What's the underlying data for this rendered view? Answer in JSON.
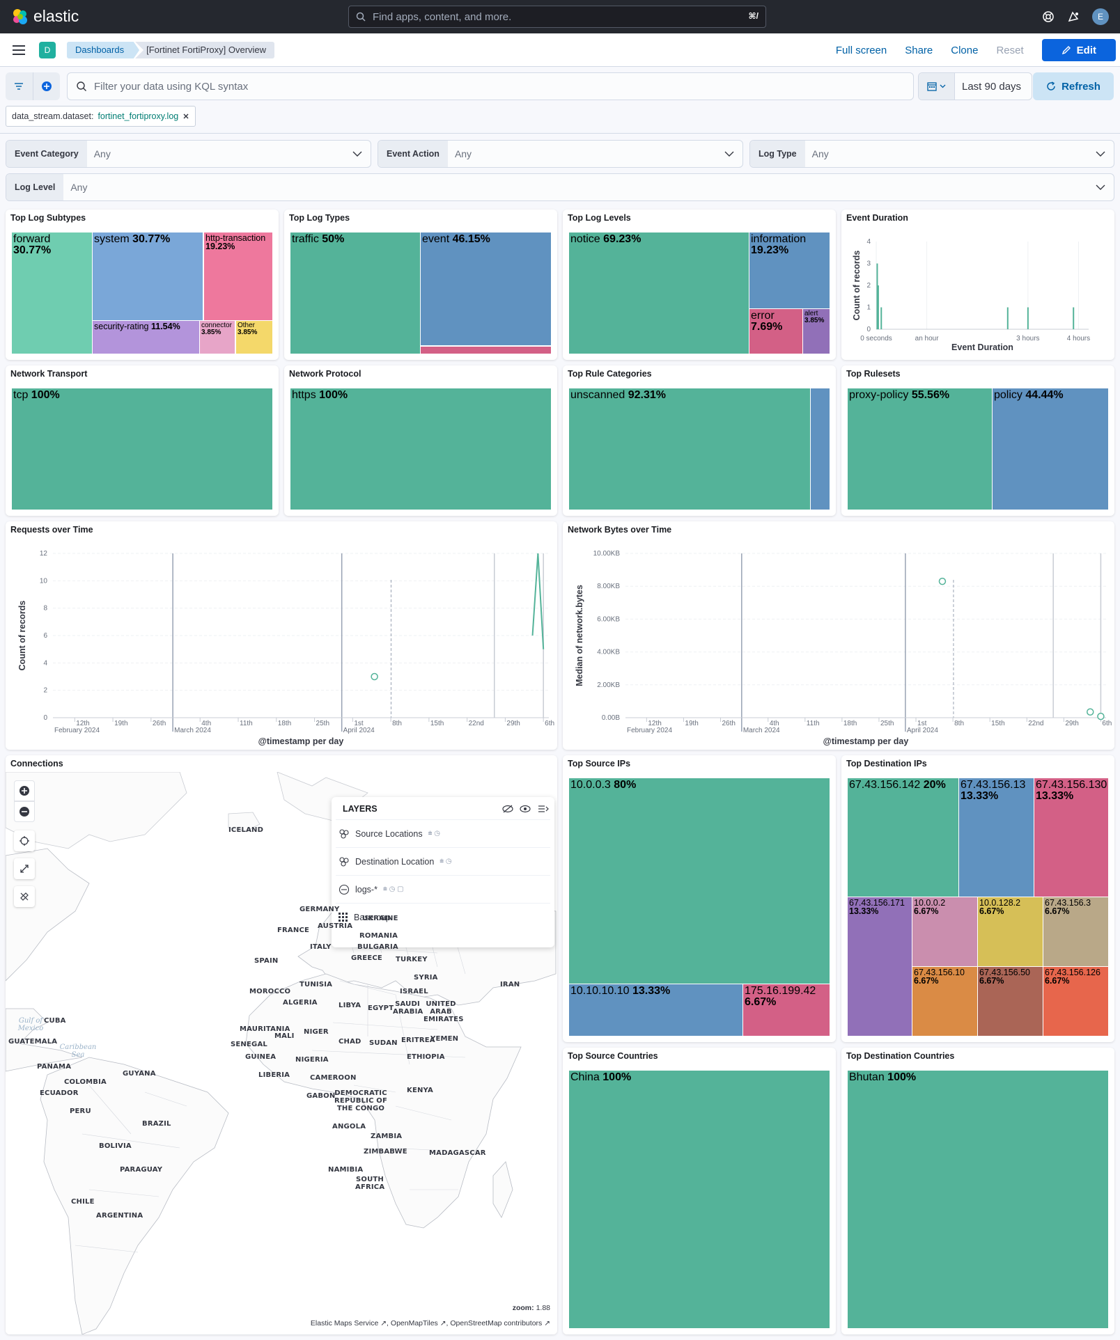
{
  "header": {
    "logo_text": "elastic",
    "search_placeholder": "Find apps, content, and more.",
    "search_shortcut": "⌘/",
    "avatar_initial": "E"
  },
  "nav": {
    "space_badge": "D",
    "breadcrumbs": [
      "Dashboards",
      "[Fortinet FortiProxy] Overview"
    ],
    "actions": {
      "fullscreen": "Full screen",
      "share": "Share",
      "clone": "Clone",
      "reset": "Reset",
      "edit": "Edit"
    }
  },
  "query": {
    "placeholder": "Filter your data using KQL syntax",
    "date_range": "Last 90 days",
    "refresh": "Refresh",
    "filter_pill": {
      "field": "data_stream.dataset:",
      "value": "fortinet_fortiproxy.log"
    }
  },
  "controls": [
    {
      "label": "Event Category",
      "value": "Any"
    },
    {
      "label": "Event Action",
      "value": "Any"
    },
    {
      "label": "Log Type",
      "value": "Any"
    },
    {
      "label": "Log Level",
      "value": "Any"
    }
  ],
  "panels": {
    "top_log_subtypes": {
      "title": "Top Log Subtypes",
      "cells": [
        {
          "label": "forward",
          "pct": "30.77%"
        },
        {
          "label": "system",
          "pct": "30.77%"
        },
        {
          "label": "http-transaction",
          "pct": "19.23%"
        },
        {
          "label": "security-rating",
          "pct": "11.54%"
        },
        {
          "label": "connector",
          "pct": "3.85%"
        },
        {
          "label": "Other",
          "pct": "3.85%"
        }
      ]
    },
    "top_log_types": {
      "title": "Top Log Types",
      "cells": [
        {
          "label": "traffic",
          "pct": "50%"
        },
        {
          "label": "event",
          "pct": "46.15%"
        }
      ]
    },
    "top_log_levels": {
      "title": "Top Log Levels",
      "cells": [
        {
          "label": "notice",
          "pct": "69.23%"
        },
        {
          "label": "information",
          "pct": "19.23%"
        },
        {
          "label": "error",
          "pct": "7.69%"
        },
        {
          "label": "alert",
          "pct": "3.85%"
        }
      ]
    },
    "event_duration": {
      "title": "Event Duration"
    },
    "network_transport": {
      "title": "Network Transport",
      "cells": [
        {
          "label": "tcp",
          "pct": "100%"
        }
      ]
    },
    "network_protocol": {
      "title": "Network Protocol",
      "cells": [
        {
          "label": "https",
          "pct": "100%"
        }
      ]
    },
    "top_rule_categories": {
      "title": "Top Rule Categories",
      "cells": [
        {
          "label": "unscanned",
          "pct": "92.31%"
        }
      ]
    },
    "top_rulesets": {
      "title": "Top Rulesets",
      "cells": [
        {
          "label": "proxy-policy",
          "pct": "55.56%"
        },
        {
          "label": "policy",
          "pct": "44.44%"
        }
      ]
    },
    "requests_over_time": {
      "title": "Requests over Time"
    },
    "network_bytes_over_time": {
      "title": "Network Bytes over Time"
    },
    "connections": {
      "title": "Connections"
    },
    "top_source_ips": {
      "title": "Top Source IPs",
      "cells": [
        {
          "label": "10.0.0.3",
          "pct": "80%"
        },
        {
          "label": "10.10.10.10",
          "pct": "13.33%"
        },
        {
          "label": "175.16.199.42",
          "pct": "6.67%"
        }
      ]
    },
    "top_destination_ips": {
      "title": "Top Destination IPs",
      "cells": [
        {
          "label": "67.43.156.142",
          "pct": "20%"
        },
        {
          "label": "67.43.156.13",
          "pct": "13.33%"
        },
        {
          "label": "67.43.156.130",
          "pct": "13.33%"
        },
        {
          "label": "67.43.156.171",
          "pct": "13.33%"
        },
        {
          "label": "10.0.0.2",
          "pct": "6.67%"
        },
        {
          "label": "10.0.128.2",
          "pct": "6.67%"
        },
        {
          "label": "67.43.156.3",
          "pct": "6.67%"
        },
        {
          "label": "67.43.156.10",
          "pct": "6.67%"
        },
        {
          "label": "67.43.156.50",
          "pct": "6.67%"
        },
        {
          "label": "67.43.156.126",
          "pct": "6.67%"
        }
      ]
    },
    "top_source_countries": {
      "title": "Top Source Countries",
      "cells": [
        {
          "label": "China",
          "pct": "100%"
        }
      ]
    },
    "top_destination_countries": {
      "title": "Top Destination Countries",
      "cells": [
        {
          "label": "Bhutan",
          "pct": "100%"
        }
      ]
    }
  },
  "map": {
    "layers_title": "LAYERS",
    "layers": [
      "Source Locations",
      "Destination Location",
      "logs-*",
      "Basemap"
    ],
    "zoom_label": "zoom:",
    "zoom_value": "1.88",
    "attribution": [
      "Elastic Maps Service",
      "OpenMapTiles",
      "OpenStreetMap contributors"
    ],
    "countries": [
      "ICELAND",
      "GERMANY",
      "UKRAINE",
      "FRANCE",
      "AUSTRIA",
      "ROMANIA",
      "ITALY",
      "BULGARIA",
      "SPAIN",
      "GREECE",
      "TURKEY",
      "TUNISIA",
      "SYRIA",
      "MOROCCO",
      "ISRAEL",
      "IRAN",
      "ALGERIA",
      "LIBYA",
      "EGYPT",
      "SAUDI ARABIA",
      "UNITED ARAB EMIRATES",
      "CUBA",
      "MAURITANIA",
      "MALI",
      "NIGER",
      "CHAD",
      "SUDAN",
      "ERITREA",
      "YEMEN",
      "GUATEMALA",
      "SENEGAL",
      "GUINEA",
      "NIGERIA",
      "ETHIOPIA",
      "PANAMA",
      "LIBERIA",
      "GUYANA",
      "COLOMBIA",
      "CAMEROON",
      "ECUADOR",
      "KENYA",
      "GABON",
      "DEMOCRATIC REPUBLIC OF THE CONGO",
      "PERU",
      "BRAZIL",
      "ANGOLA",
      "ZAMBIA",
      "BOLIVIA",
      "ZIMBABWE",
      "MADAGASCAR",
      "PARAGUAY",
      "NAMIBIA",
      "SOUTH AFRICA",
      "CHILE",
      "ARGENTINA"
    ],
    "seas": [
      "Gulf of Mexico",
      "Caribbean Sea"
    ]
  },
  "chart_data": [
    {
      "type": "bar",
      "title": "Event Duration",
      "xlabel": "Event Duration",
      "ylabel": "Count of records",
      "ylim": [
        0,
        4
      ],
      "yticks": [
        "0",
        "1",
        "2",
        "3",
        "4"
      ],
      "xticks": [
        "0 seconds",
        "an hour",
        "3 hours",
        "4 hours"
      ],
      "x_hours": [
        0.02,
        0.04,
        0.1,
        2.6,
        3.0,
        3.9
      ],
      "values": [
        3,
        2,
        1,
        1,
        1,
        1
      ]
    },
    {
      "type": "line",
      "title": "Requests over Time",
      "xlabel": "@timestamp per day",
      "ylabel": "Count of records",
      "ylim": [
        0,
        12
      ],
      "yticks": [
        "0",
        "2",
        "4",
        "6",
        "8",
        "10",
        "12"
      ],
      "xticks": [
        "12th",
        "19th",
        "26th",
        "4th",
        "11th",
        "18th",
        "25th",
        "1st",
        "8th",
        "15th",
        "22nd",
        "29th",
        "6th"
      ],
      "xticks_sub": [
        "February 2024",
        "March 2024",
        "April 2024"
      ],
      "points": [
        {
          "day": "2024-04-07",
          "value": 3
        },
        {
          "day": "2024-05-06",
          "value": 6
        },
        {
          "day": "2024-05-07",
          "value": 12
        },
        {
          "day": "2024-05-08",
          "value": 5
        }
      ]
    },
    {
      "type": "line",
      "title": "Network Bytes over Time",
      "xlabel": "@timestamp per day",
      "ylabel": "Median of network.bytes",
      "ylim": [
        0,
        10000
      ],
      "yticks": [
        "0.00B",
        "2.00KB",
        "4.00KB",
        "6.00KB",
        "8.00KB",
        "10.00KB"
      ],
      "xticks": [
        "12th",
        "19th",
        "26th",
        "4th",
        "11th",
        "18th",
        "25th",
        "1st",
        "8th",
        "15th",
        "22nd",
        "29th",
        "6th"
      ],
      "xticks_sub": [
        "February 2024",
        "March 2024",
        "April 2024"
      ],
      "points": [
        {
          "day": "2024-04-08",
          "value": 8300
        },
        {
          "day": "2024-05-06",
          "value": 350
        },
        {
          "day": "2024-05-08",
          "value": 80
        }
      ]
    }
  ]
}
